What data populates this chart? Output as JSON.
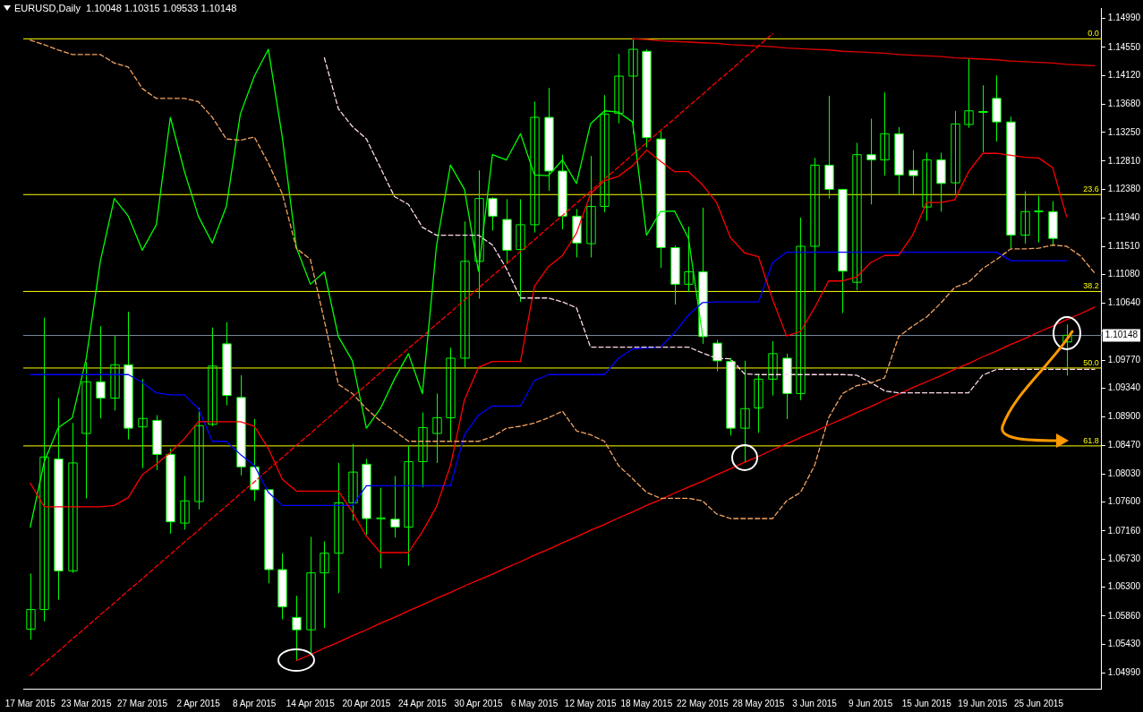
{
  "chart_data": {
    "type": "candlestick",
    "title": "EURUSD,Daily  1.10048 1.10315 1.09533 1.10148",
    "categories": [
      "17 Mar 2015",
      null,
      null,
      null,
      "23 Mar 2015",
      null,
      null,
      null,
      "27 Mar 2015",
      null,
      null,
      null,
      "2 Apr 2015",
      null,
      null,
      null,
      "8 Apr 2015",
      null,
      null,
      null,
      "14 Apr 2015",
      null,
      null,
      null,
      "20 Apr 2015",
      null,
      null,
      null,
      "24 Apr 2015",
      null,
      null,
      null,
      "30 Apr 2015",
      null,
      null,
      null,
      "6 May 2015",
      null,
      null,
      null,
      "12 May 2015",
      null,
      null,
      null,
      "18 May 2015",
      null,
      null,
      null,
      "22 May 2015",
      null,
      null,
      null,
      "28 May 2015",
      null,
      null,
      null,
      "3 Jun 2015",
      null,
      null,
      null,
      "9 Jun 2015",
      null,
      null,
      null,
      "15 Jun 2015",
      null,
      null,
      null,
      "19 Jun 2015",
      null,
      null,
      null,
      "25 Jun 2015",
      null,
      null,
      null,
      null
    ],
    "ohlc": [
      [
        1.0566,
        1.0651,
        1.055,
        1.0596
      ],
      [
        1.0596,
        1.1042,
        1.0578,
        1.0829
      ],
      [
        1.0826,
        1.0919,
        1.0611,
        1.0655
      ],
      [
        1.0655,
        1.0881,
        1.0652,
        1.082
      ],
      [
        1.0865,
        1.0974,
        1.0766,
        1.0944
      ],
      [
        1.0944,
        1.1029,
        1.0888,
        1.0919
      ],
      [
        1.0919,
        1.1014,
        1.09,
        1.097
      ],
      [
        1.097,
        1.1051,
        1.0856,
        1.0873
      ],
      [
        1.0875,
        1.0948,
        1.0812,
        1.0888
      ],
      [
        1.0885,
        1.0893,
        1.0809,
        1.0833
      ],
      [
        1.0833,
        1.0842,
        1.0712,
        1.073
      ],
      [
        1.0728,
        1.08,
        1.0718,
        1.0762
      ],
      [
        1.0761,
        1.0904,
        1.0749,
        1.0877
      ],
      [
        1.0879,
        1.1027,
        1.0876,
        1.0968
      ],
      [
        1.1002,
        1.1035,
        1.0908,
        1.0923
      ],
      [
        1.092,
        1.0954,
        1.0801,
        1.0814
      ],
      [
        1.0814,
        1.0887,
        1.0762,
        1.0779
      ],
      [
        1.0779,
        1.0779,
        1.0636,
        1.0657
      ],
      [
        1.0657,
        1.0682,
        1.0581,
        1.06
      ],
      [
        1.0584,
        1.0617,
        1.0519,
        1.0565
      ],
      [
        1.0565,
        1.0707,
        1.0529,
        1.0652
      ],
      [
        1.0652,
        1.07,
        1.0568,
        1.0682
      ],
      [
        1.0682,
        1.082,
        1.0621,
        1.0759
      ],
      [
        1.0759,
        1.0849,
        1.0732,
        1.0806
      ],
      [
        1.0818,
        1.0826,
        1.071,
        1.0735
      ],
      [
        1.0735,
        1.0782,
        1.0659,
        1.0736
      ],
      [
        1.0734,
        1.08,
        1.0706,
        1.0722
      ],
      [
        1.0722,
        1.0846,
        1.0663,
        1.0822
      ],
      [
        1.0822,
        1.0897,
        1.0783,
        1.0874
      ],
      [
        1.0865,
        1.0926,
        1.082,
        1.0889
      ],
      [
        1.0889,
        1.0996,
        1.0853,
        1.098
      ],
      [
        1.098,
        1.1189,
        1.0966,
        1.1128
      ],
      [
        1.1128,
        1.1267,
        1.1071,
        1.1224
      ],
      [
        1.1224,
        1.1226,
        1.1175,
        1.1197
      ],
      [
        1.1192,
        1.1223,
        1.1124,
        1.1145
      ],
      [
        1.1146,
        1.1223,
        1.1066,
        1.1184
      ],
      [
        1.1184,
        1.1372,
        1.1172,
        1.1348
      ],
      [
        1.1348,
        1.1393,
        1.1236,
        1.1266
      ],
      [
        1.1266,
        1.1291,
        1.1177,
        1.1197
      ],
      [
        1.1197,
        1.1208,
        1.1134,
        1.1156
      ],
      [
        1.1155,
        1.1289,
        1.1134,
        1.1212
      ],
      [
        1.1212,
        1.1382,
        1.1203,
        1.1353
      ],
      [
        1.1354,
        1.1445,
        1.1339,
        1.1411
      ],
      [
        1.1411,
        1.1469,
        1.1323,
        1.1452
      ],
      [
        1.1449,
        1.1452,
        1.1302,
        1.1317
      ],
      [
        1.1315,
        1.1327,
        1.1118,
        1.1149
      ],
      [
        1.1149,
        1.1152,
        1.1062,
        1.1093
      ],
      [
        1.1093,
        1.1181,
        1.1081,
        1.1112
      ],
      [
        1.1112,
        1.121,
        1.1002,
        1.1013
      ],
      [
        1.1003,
        1.1008,
        1.096,
        1.0976
      ],
      [
        1.0975,
        1.098,
        1.0862,
        1.0873
      ],
      [
        1.0873,
        1.0976,
        1.082,
        1.0903
      ],
      [
        1.0904,
        1.0956,
        1.0866,
        1.0948
      ],
      [
        1.0948,
        1.1006,
        1.0923,
        1.0987
      ],
      [
        1.098,
        1.0987,
        1.0887,
        1.0926
      ],
      [
        1.0926,
        1.1195,
        1.0916,
        1.1151
      ],
      [
        1.1151,
        1.1286,
        1.1081,
        1.1275
      ],
      [
        1.1275,
        1.1381,
        1.1224,
        1.1238
      ],
      [
        1.1238,
        1.1238,
        1.1049,
        1.1113
      ],
      [
        1.1096,
        1.1309,
        1.1084,
        1.1291
      ],
      [
        1.1291,
        1.1346,
        1.1215,
        1.1283
      ],
      [
        1.1283,
        1.1386,
        1.1259,
        1.1323
      ],
      [
        1.1323,
        1.1333,
        1.123,
        1.126
      ],
      [
        1.1267,
        1.1298,
        1.123,
        1.1259
      ],
      [
        1.1211,
        1.1294,
        1.119,
        1.1283
      ],
      [
        1.1283,
        1.1294,
        1.1204,
        1.1247
      ],
      [
        1.1248,
        1.1358,
        1.1231,
        1.1338
      ],
      [
        1.1337,
        1.1437,
        1.1332,
        1.1358
      ],
      [
        1.1357,
        1.1397,
        1.1295,
        1.1356
      ],
      [
        1.1377,
        1.1412,
        1.1311,
        1.1341
      ],
      [
        1.1341,
        1.1349,
        1.1148,
        1.1168
      ],
      [
        1.1168,
        1.1235,
        1.1155,
        1.1204
      ],
      [
        1.1204,
        1.1228,
        1.1157,
        1.1205
      ],
      [
        1.1204,
        1.122,
        1.1152,
        1.1163
      ],
      [
        1.10048,
        1.10315,
        1.09533,
        1.10148
      ],
      null,
      null
    ],
    "colors": [
      "#00ff00",
      "#00ff00",
      "#ffffff",
      "#00ff00",
      "#00ff00",
      "#ffffff",
      "#00ff00",
      "#ffffff",
      "#00ff00",
      "#ffffff",
      "#ffffff",
      "#00ff00",
      "#00ff00",
      "#00ff00",
      "#ffffff",
      "#ffffff",
      "#ffffff",
      "#ffffff",
      "#ffffff",
      "#ffffff",
      "#00ff00",
      "#00ff00",
      "#00ff00",
      "#00ff00",
      "#ffffff",
      "#00ff00",
      "#ffffff",
      "#00ff00",
      "#00ff00",
      "#00ff00",
      "#00ff00",
      "#00ff00",
      "#00ff00",
      "#ffffff",
      "#ffffff",
      "#00ff00",
      "#00ff00",
      "#ffffff",
      "#ffffff",
      "#ffffff",
      "#00ff00",
      "#00ff00",
      "#00ff00",
      "#00ff00",
      "#ffffff",
      "#ffffff",
      "#ffffff",
      "#00ff00",
      "#ffffff",
      "#ffffff",
      "#ffffff",
      "#00ff00",
      "#00ff00",
      "#00ff00",
      "#ffffff",
      "#00ff00",
      "#00ff00",
      "#ffffff",
      "#ffffff",
      "#00ff00",
      "#ffffff",
      "#00ff00",
      "#ffffff",
      "#ffffff",
      "#00ff00",
      "#ffffff",
      "#00ff00",
      "#00ff00",
      "#ffffff",
      "#ffffff",
      "#ffffff",
      "#00ff00",
      "#00ff00",
      "#ffffff",
      "#00ff00",
      null,
      null
    ],
    "ylim": [
      1.0475,
      1.1515
    ],
    "yticks": [
      {
        "value": 1.1499,
        "label": "1.14990"
      },
      {
        "value": 1.1455,
        "label": "1.14550"
      },
      {
        "value": 1.1412,
        "label": "1.14120"
      },
      {
        "value": 1.1368,
        "label": "1.13680"
      },
      {
        "value": 1.1325,
        "label": "1.13250"
      },
      {
        "value": 1.1281,
        "label": "1.12810"
      },
      {
        "value": 1.1238,
        "label": "1.12380"
      },
      {
        "value": 1.1194,
        "label": "1.11940"
      },
      {
        "value": 1.1151,
        "label": "1.11510"
      },
      {
        "value": 1.1108,
        "label": "1.11080"
      },
      {
        "value": 1.1064,
        "label": "1.10640"
      },
      {
        "value": 1.1021,
        "label": null
      },
      {
        "value": 1.0977,
        "label": "1.09770"
      },
      {
        "value": 1.0934,
        "label": "1.09340"
      },
      {
        "value": 1.089,
        "label": "1.08900"
      },
      {
        "value": 1.0847,
        "label": "1.08470"
      },
      {
        "value": 1.0803,
        "label": "1.08030"
      },
      {
        "value": 1.076,
        "label": "1.07600"
      },
      {
        "value": 1.0716,
        "label": "1.07160"
      },
      {
        "value": 1.0673,
        "label": "1.06730"
      },
      {
        "value": 1.063,
        "label": "1.06300"
      },
      {
        "value": 1.0586,
        "label": "1.05860"
      },
      {
        "value": 1.0543,
        "label": "1.05430"
      },
      {
        "value": 1.0499,
        "label": "1.04990"
      }
    ],
    "marker": "none",
    "legend": false,
    "grid": false,
    "series": [
      {
        "type": "line",
        "color": "#f4a460",
        "line_style": "dashed",
        "values": [
          1.1466,
          1.1459,
          1.1451,
          1.1444,
          1.1444,
          1.1444,
          1.1431,
          1.1425,
          1.1392,
          1.1377,
          1.1377,
          1.1377,
          1.1372,
          1.1348,
          1.1315,
          1.1313,
          1.1318,
          1.1278,
          1.1231,
          1.1148,
          1.1131,
          1.1037,
          1.094,
          1.0926,
          1.0903,
          1.0884,
          1.0869,
          1.0853,
          1.0853,
          1.0853,
          1.0853,
          1.0853,
          1.0853,
          1.086,
          1.0873,
          1.0876,
          1.0881,
          1.0889,
          1.0899,
          1.0869,
          1.0863,
          1.0853,
          1.0816,
          1.0796,
          1.0775,
          1.0766,
          1.0766,
          1.0766,
          1.0762,
          1.0742,
          1.0735,
          1.0735,
          1.0735,
          1.0735,
          1.0762,
          1.0775,
          1.0816,
          1.0889,
          1.0926,
          1.0938,
          1.0942,
          1.095,
          1.1013,
          1.1029,
          1.1043,
          1.1064,
          1.1088,
          1.1096,
          1.1117,
          1.1131,
          1.1147,
          1.1147,
          1.1148,
          1.1153,
          1.1151,
          1.1136,
          1.111
        ]
      },
      {
        "type": "line",
        "color": "#ffd9ec",
        "line_style": "dashed",
        "values": [
          null,
          null,
          null,
          null,
          null,
          null,
          null,
          null,
          null,
          null,
          null,
          null,
          null,
          null,
          null,
          null,
          null,
          null,
          null,
          null,
          null,
          1.1439,
          1.1361,
          1.1334,
          1.1315,
          1.1271,
          1.1227,
          1.1215,
          1.118,
          1.1168,
          1.1168,
          1.1168,
          1.1168,
          1.1153,
          1.1117,
          1.1072,
          1.1072,
          1.1072,
          1.1066,
          1.1057,
          1.0997,
          1.0997,
          1.0997,
          1.0997,
          1.0997,
          1.0997,
          1.0997,
          1.0997,
          1.0988,
          1.098,
          1.0979,
          1.0956,
          1.0955,
          1.0955,
          1.0955,
          1.0955,
          1.0955,
          1.0955,
          1.0955,
          1.0954,
          1.0943,
          1.093,
          1.0927,
          1.0927,
          1.0927,
          1.0927,
          1.0927,
          1.0927,
          1.0954,
          1.0963,
          1.0963,
          1.0963,
          1.0963,
          1.0963,
          1.0963,
          1.0963,
          1.0963
        ]
      },
      {
        "type": "line",
        "color": "#ff0000",
        "values": [
          1.0789,
          1.0753,
          1.0753,
          1.0753,
          1.0753,
          1.0753,
          1.0755,
          1.0767,
          1.0802,
          1.0818,
          1.0836,
          1.0857,
          1.0883,
          1.0883,
          1.0883,
          1.0883,
          1.0876,
          1.0842,
          1.0795,
          1.0777,
          1.0777,
          1.0777,
          1.0777,
          1.0745,
          1.0708,
          1.0683,
          1.0683,
          1.0683,
          1.0715,
          1.0753,
          1.0816,
          1.0916,
          1.0966,
          1.0975,
          1.0975,
          1.0975,
          1.109,
          1.112,
          1.1137,
          1.1171,
          1.1231,
          1.1251,
          1.1258,
          1.1274,
          1.1298,
          1.1281,
          1.1265,
          1.1265,
          1.1245,
          1.1218,
          1.1164,
          1.1141,
          1.1135,
          1.107,
          1.1014,
          1.1021,
          1.1057,
          1.1098,
          1.1098,
          1.1104,
          1.1126,
          1.1137,
          1.1137,
          1.1168,
          1.1218,
          1.1218,
          1.1222,
          1.1265,
          1.1293,
          1.1293,
          1.129,
          1.1287,
          1.1286,
          1.1271,
          1.1196,
          null,
          null
        ]
      },
      {
        "type": "line",
        "color": "#0000ff",
        "values": [
          1.0955,
          1.0955,
          1.0955,
          1.0955,
          1.0955,
          1.0955,
          1.0955,
          1.0955,
          1.0943,
          1.0927,
          1.0924,
          1.0924,
          1.0903,
          1.0853,
          1.0853,
          1.0833,
          1.0816,
          1.0775,
          1.0755,
          1.0755,
          1.0755,
          1.0755,
          1.0755,
          1.0755,
          1.0785,
          1.0785,
          1.0785,
          1.0785,
          1.0785,
          1.0785,
          1.0785,
          1.0863,
          1.0893,
          1.0907,
          1.0907,
          1.0907,
          1.0946,
          1.0955,
          1.0955,
          1.0955,
          1.0955,
          1.0955,
          1.098,
          1.0994,
          1.0996,
          1.0997,
          1.1019,
          1.1046,
          1.1065,
          1.1066,
          1.1066,
          1.1066,
          1.1066,
          1.1126,
          1.1142,
          1.1142,
          1.1142,
          1.1142,
          1.1142,
          1.1142,
          1.1142,
          1.1142,
          1.1142,
          1.1142,
          1.1142,
          1.1142,
          1.1142,
          1.1142,
          1.1142,
          1.1142,
          1.1129,
          1.1129,
          1.1129,
          1.1129,
          1.1129,
          null,
          null
        ]
      },
      {
        "type": "line",
        "color": "#00ff00",
        "values": [
          1.0722,
          1.0822,
          1.0874,
          1.0889,
          1.098,
          1.1128,
          1.1224,
          1.1197,
          1.1145,
          1.1184,
          1.1348,
          1.1266,
          1.1197,
          1.1156,
          1.1212,
          1.1353,
          1.1411,
          1.1452,
          1.1317,
          1.1149,
          1.1093,
          1.1112,
          1.1013,
          1.0976,
          1.0873,
          1.0903,
          1.0948,
          1.0987,
          1.0926,
          1.1151,
          1.1275,
          1.1238,
          1.1113,
          1.1291,
          1.1283,
          1.1323,
          1.126,
          1.1259,
          1.1283,
          1.1247,
          1.1338,
          1.1358,
          1.1356,
          1.1341,
          1.1168,
          1.1204,
          1.1205,
          1.1163,
          1.1015,
          null,
          null,
          null,
          null,
          null,
          null,
          null,
          null,
          null,
          null,
          null,
          null,
          null,
          null,
          null,
          null,
          null,
          null,
          null,
          null,
          null,
          null,
          null,
          null,
          null,
          null,
          null,
          null
        ]
      },
      {
        "type": "line",
        "color": "#ff0000",
        "line_style": "dashed",
        "values": [
          1.0495,
          1.0514,
          1.0532,
          1.0551,
          1.0569,
          1.0588,
          1.0606,
          1.0625,
          1.0643,
          1.0662,
          1.068,
          1.0699,
          1.0717,
          1.0736,
          1.0754,
          1.0773,
          1.0791,
          1.081,
          1.0828,
          1.0847,
          1.0865,
          1.0884,
          1.0902,
          1.0921,
          1.0939,
          1.0958,
          1.0976,
          1.0995,
          1.1013,
          1.1032,
          1.105,
          1.1069,
          1.1087,
          1.1106,
          1.1124,
          1.1143,
          1.1161,
          1.118,
          1.1198,
          1.1217,
          1.1235,
          1.1254,
          1.1272,
          1.1291,
          1.1309,
          1.1328,
          1.1346,
          1.1365,
          1.1383,
          1.1402,
          1.142,
          1.1439,
          1.1457,
          1.1476,
          null,
          null,
          null,
          null,
          null,
          null,
          null,
          null,
          null,
          null,
          null,
          null,
          null,
          null,
          null,
          null,
          null,
          null,
          null,
          null,
          null,
          null,
          null
        ]
      },
      {
        "type": "line",
        "color": "#ff0000",
        "values": [
          null,
          null,
          null,
          null,
          null,
          null,
          null,
          null,
          null,
          null,
          null,
          null,
          null,
          null,
          null,
          null,
          null,
          null,
          null,
          1.0518,
          1.0527,
          1.0537,
          1.0546,
          1.0556,
          1.0565,
          1.0575,
          1.0584,
          1.0594,
          1.0603,
          1.0613,
          1.0622,
          1.0632,
          1.0641,
          1.065,
          1.066,
          1.0669,
          1.0679,
          1.0688,
          1.0698,
          1.0707,
          1.0717,
          1.0726,
          1.0736,
          1.0745,
          1.0755,
          1.0764,
          1.0774,
          1.0783,
          1.0792,
          1.0802,
          1.0811,
          1.0821,
          1.083,
          1.084,
          1.0849,
          1.0859,
          1.0868,
          1.0878,
          1.0887,
          1.0897,
          1.0906,
          1.0916,
          1.0925,
          1.0935,
          1.0944,
          1.0953,
          1.0963,
          1.0972,
          1.0982,
          1.0991,
          1.1001,
          1.101,
          1.102,
          1.1029,
          1.1039,
          1.1048,
          1.1058
        ]
      },
      {
        "type": "line",
        "color": "#e00000",
        "values": [
          null,
          null,
          null,
          null,
          null,
          null,
          null,
          null,
          null,
          null,
          null,
          null,
          null,
          null,
          null,
          null,
          null,
          null,
          null,
          null,
          null,
          null,
          null,
          null,
          null,
          null,
          null,
          null,
          null,
          null,
          null,
          null,
          null,
          null,
          null,
          null,
          null,
          null,
          null,
          null,
          null,
          null,
          null,
          1.1468,
          1.1467,
          1.1465,
          1.1464,
          1.1463,
          1.1462,
          1.1461,
          1.1459,
          1.1458,
          1.1457,
          1.1456,
          1.1454,
          1.1453,
          1.1452,
          1.1451,
          1.1449,
          1.1448,
          1.1447,
          1.1446,
          1.1444,
          1.1443,
          1.1442,
          1.1441,
          1.1439,
          1.1438,
          1.1437,
          1.1436,
          1.1434,
          1.1433,
          1.1432,
          1.1431,
          1.1429,
          1.1428,
          1.1427
        ]
      }
    ],
    "ref_lines": [
      {
        "axis": "y",
        "value": 1.1468,
        "color": "#ffff00"
      },
      {
        "axis": "y",
        "value": 1.123,
        "color": "#ffff00"
      },
      {
        "axis": "y",
        "value": 1.1082,
        "color": "#ffff00"
      },
      {
        "axis": "y",
        "value": 1.0965,
        "color": "#ffff00"
      },
      {
        "axis": "y",
        "value": 1.0846,
        "color": "#ffff00"
      },
      {
        "axis": "y",
        "value": 1.10148,
        "label": "1.10148",
        "color": "#778899"
      }
    ],
    "annotations": [
      {
        "text": "0.0",
        "y": 1.1468
      },
      {
        "text": "23.6",
        "y": 1.123
      },
      {
        "text": "38.2",
        "y": 1.1082
      },
      {
        "text": "50.0",
        "y": 1.0965
      },
      {
        "text": "61.8",
        "y": 1.0846
      }
    ]
  }
}
